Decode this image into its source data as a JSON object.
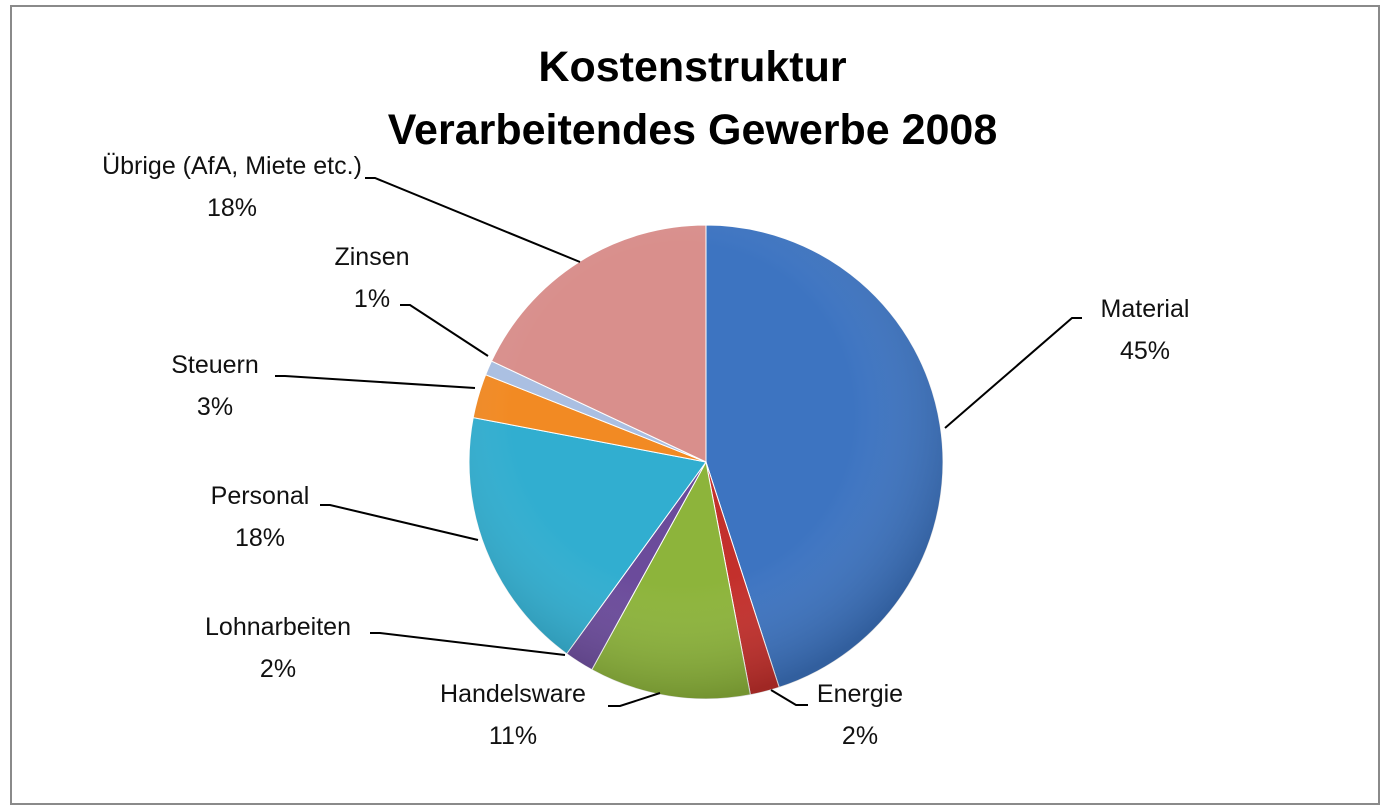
{
  "chart_data": {
    "type": "pie",
    "title": "Kostenstruktur\nVerarbeitendes Gewerbe 2008",
    "categories": [
      "Material",
      "Energie",
      "Handelsware",
      "Lohnarbeiten",
      "Personal",
      "Steuern",
      "Zinsen",
      "Übrige (AfA, Miete etc.)"
    ],
    "values": [
      45,
      2,
      11,
      2,
      18,
      3,
      1,
      18
    ],
    "value_labels": [
      "45%",
      "2%",
      "11%",
      "2%",
      "18%",
      "3%",
      "1%",
      "18%"
    ],
    "colors": [
      "#3d74c1",
      "#c3302c",
      "#8db43b",
      "#6b4b9b",
      "#31aed0",
      "#f28a23",
      "#aabfe2",
      "#d98f8c"
    ]
  }
}
